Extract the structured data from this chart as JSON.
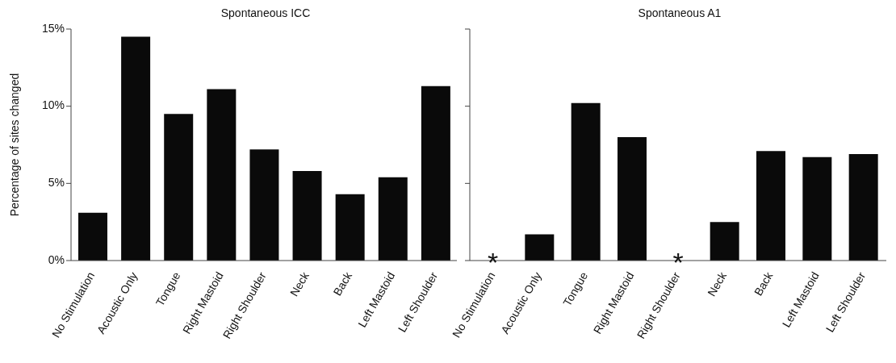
{
  "chart_data": [
    {
      "type": "bar",
      "title": "Spontaneous ICC",
      "ylabel": "Percentage of sites changed",
      "categories": [
        "No Stimulation",
        "Acoustic Only",
        "Tongue",
        "Right Mastoid",
        "Right Shoulder",
        "Neck",
        "Back",
        "Left Mastoid",
        "Left Shoulder"
      ],
      "values": [
        3.1,
        14.5,
        9.5,
        11.1,
        7.2,
        5.8,
        4.3,
        5.4,
        11.3
      ],
      "color": "#0a0a0a",
      "ylim": [
        0,
        15
      ],
      "yticks": [
        {
          "value": 0,
          "label": "0%"
        },
        {
          "value": 5,
          "label": "5%"
        },
        {
          "value": 10,
          "label": "10%"
        },
        {
          "value": 15,
          "label": "15%"
        }
      ]
    },
    {
      "type": "bar",
      "title": "Spontaneous A1",
      "categories": [
        "No Stimulation",
        "Acoustic Only",
        "Tongue",
        "Right Mastoid",
        "Right Shoulder",
        "Neck",
        "Back",
        "Left Mastoid",
        "Left Shoulder"
      ],
      "values": [
        null,
        1.7,
        10.2,
        8.0,
        null,
        2.5,
        7.1,
        6.7,
        6.9
      ],
      "color": "#0a0a0a",
      "ylim": [
        0,
        15
      ],
      "yticks": [
        {
          "value": 0,
          "label": null
        },
        {
          "value": 5,
          "label": null
        },
        {
          "value": 10,
          "label": null
        },
        {
          "value": 15,
          "label": null
        }
      ],
      "tick_labels": "x",
      "annotations": [
        "*",
        "*"
      ]
    }
  ]
}
